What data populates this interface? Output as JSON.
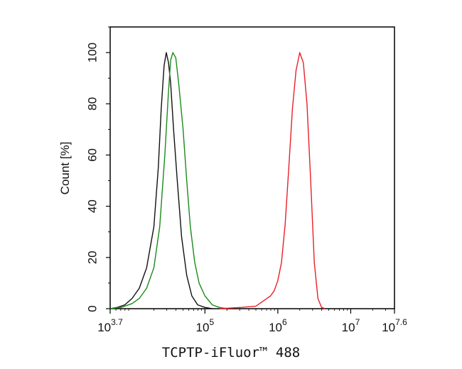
{
  "chart_data": {
    "type": "line",
    "title": "",
    "xlabel": "TCPTP-iFluor™ 488",
    "ylabel": "Count [%]",
    "x_scale": "log10",
    "xlim": [
      3.7,
      7.6
    ],
    "ylim": [
      0,
      110
    ],
    "x_ticks": [
      {
        "exp": 3.7,
        "base": "10",
        "sup": "3.7"
      },
      {
        "exp": 5,
        "base": "10",
        "sup": "5"
      },
      {
        "exp": 6,
        "base": "10",
        "sup": "6"
      },
      {
        "exp": 7,
        "base": "10",
        "sup": "7"
      },
      {
        "exp": 7.6,
        "base": "10",
        "sup": "7.6"
      }
    ],
    "y_ticks": [
      "0",
      "20",
      "40",
      "60",
      "80",
      "100"
    ],
    "grid": false,
    "legend": "none",
    "series": [
      {
        "color": "#111111",
        "points": [
          [
            3.7,
            0
          ],
          [
            3.8,
            0.5
          ],
          [
            3.9,
            1.5
          ],
          [
            4.0,
            4
          ],
          [
            4.1,
            8
          ],
          [
            4.2,
            16
          ],
          [
            4.3,
            32
          ],
          [
            4.36,
            55
          ],
          [
            4.4,
            78
          ],
          [
            4.44,
            95
          ],
          [
            4.47,
            100
          ],
          [
            4.5,
            96
          ],
          [
            4.53,
            88
          ],
          [
            4.57,
            70
          ],
          [
            4.62,
            50
          ],
          [
            4.68,
            28
          ],
          [
            4.75,
            13
          ],
          [
            4.82,
            5
          ],
          [
            4.9,
            1.5
          ],
          [
            5.0,
            0.5
          ],
          [
            5.1,
            0
          ]
        ]
      },
      {
        "color": "#1a8a1a",
        "points": [
          [
            3.7,
            0
          ],
          [
            3.85,
            0.5
          ],
          [
            4.0,
            2
          ],
          [
            4.1,
            4
          ],
          [
            4.2,
            8
          ],
          [
            4.3,
            16
          ],
          [
            4.38,
            32
          ],
          [
            4.45,
            60
          ],
          [
            4.5,
            85
          ],
          [
            4.53,
            97
          ],
          [
            4.56,
            100
          ],
          [
            4.6,
            98
          ],
          [
            4.64,
            88
          ],
          [
            4.7,
            70
          ],
          [
            4.75,
            50
          ],
          [
            4.8,
            32
          ],
          [
            4.86,
            18
          ],
          [
            4.92,
            10
          ],
          [
            5.0,
            5
          ],
          [
            5.1,
            1.5
          ],
          [
            5.2,
            0.5
          ],
          [
            5.3,
            0
          ]
        ]
      },
      {
        "color": "#e8202a",
        "points": [
          [
            5.2,
            0
          ],
          [
            5.5,
            0.5
          ],
          [
            5.7,
            1
          ],
          [
            5.8,
            3
          ],
          [
            5.85,
            4
          ],
          [
            5.9,
            5
          ],
          [
            5.95,
            7
          ],
          [
            6.0,
            11
          ],
          [
            6.05,
            18
          ],
          [
            6.1,
            33
          ],
          [
            6.15,
            55
          ],
          [
            6.2,
            78
          ],
          [
            6.25,
            93
          ],
          [
            6.3,
            100
          ],
          [
            6.35,
            96
          ],
          [
            6.4,
            80
          ],
          [
            6.45,
            50
          ],
          [
            6.5,
            18
          ],
          [
            6.55,
            4
          ],
          [
            6.6,
            0.5
          ],
          [
            6.65,
            0
          ]
        ]
      }
    ]
  }
}
